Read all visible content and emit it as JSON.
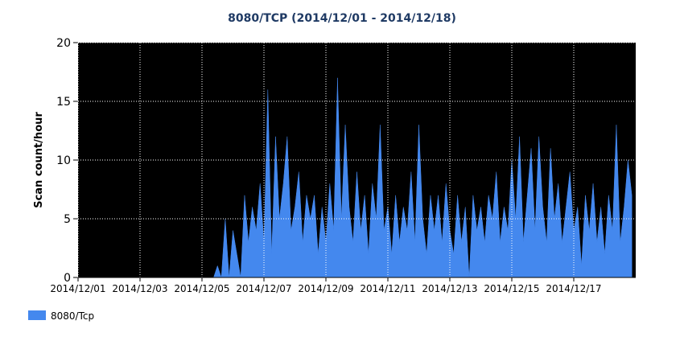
{
  "chart_data": {
    "type": "area",
    "title": "8080/TCP (2014/12/01 - 2014/12/18)",
    "y_label": "Scan count/hour",
    "x": [
      0,
      3,
      6,
      9,
      12,
      15,
      18,
      21,
      24,
      27,
      30,
      33,
      36,
      39,
      42,
      45,
      48,
      51,
      54,
      57,
      60,
      63,
      66,
      69,
      72,
      75,
      78,
      81,
      84,
      87,
      90,
      93,
      96,
      99,
      102,
      105,
      108,
      111,
      114,
      117,
      120,
      123,
      126,
      129,
      132,
      135,
      138,
      141,
      144,
      147,
      150,
      153,
      156,
      159,
      162,
      165,
      168,
      171,
      174,
      177,
      180,
      183,
      186,
      189,
      192,
      195,
      198,
      201,
      204,
      207,
      210,
      213,
      216,
      219,
      222,
      225,
      228,
      231,
      234,
      237,
      240,
      243,
      246,
      249,
      252,
      255,
      258,
      261,
      264,
      267,
      270,
      273,
      276,
      279,
      282,
      285,
      288,
      291,
      294,
      297,
      300,
      303,
      306,
      309,
      312,
      315,
      318,
      321,
      324,
      327,
      330,
      333,
      336,
      339,
      342,
      345,
      348,
      351,
      354,
      357,
      360,
      363,
      366,
      369,
      372,
      375,
      378,
      381,
      384,
      387,
      390,
      393,
      396,
      399,
      402,
      405,
      408,
      411,
      414,
      417,
      420,
      423,
      426,
      429
    ],
    "series": [
      {
        "name": "8080/Tcp",
        "color": "#4488ee",
        "values": [
          0,
          0,
          0,
          0,
          0,
          0,
          0,
          0,
          0,
          0,
          0,
          0,
          0,
          0,
          0,
          0,
          0,
          0,
          0,
          0,
          0,
          0,
          0,
          0,
          0,
          0,
          0,
          0,
          0,
          0,
          0,
          0,
          0,
          0,
          0,
          0,
          1,
          0,
          5,
          0,
          4,
          2,
          0,
          7,
          3,
          6,
          4,
          8,
          3,
          16,
          2,
          12,
          5,
          8,
          12,
          4,
          6,
          9,
          3,
          7,
          5,
          7,
          2,
          6,
          3,
          8,
          4,
          17,
          5,
          13,
          6,
          3,
          9,
          4,
          7,
          2,
          8,
          5,
          13,
          4,
          6,
          2,
          7,
          3,
          6,
          4,
          9,
          3,
          13,
          5,
          2,
          7,
          4,
          7,
          3,
          8,
          4,
          2,
          7,
          3,
          6,
          0,
          7,
          4,
          6,
          3,
          7,
          5,
          9,
          3,
          6,
          4,
          10,
          5,
          12,
          3,
          7,
          11,
          4,
          12,
          6,
          3,
          11,
          5,
          8,
          3,
          6,
          9,
          4,
          6,
          1,
          7,
          4,
          8,
          3,
          6,
          2,
          7,
          4,
          13,
          3,
          6,
          10,
          7
        ]
      }
    ],
    "xlim": [
      0,
      432
    ],
    "xticks": [
      {
        "value": 0,
        "label": "2014/12/01"
      },
      {
        "value": 48,
        "label": "2014/12/03"
      },
      {
        "value": 96,
        "label": "2014/12/05"
      },
      {
        "value": 144,
        "label": "2014/12/07"
      },
      {
        "value": 192,
        "label": "2014/12/09"
      },
      {
        "value": 240,
        "label": "2014/12/11"
      },
      {
        "value": 288,
        "label": "2014/12/13"
      },
      {
        "value": 336,
        "label": "2014/12/15"
      },
      {
        "value": 384,
        "label": "2014/12/17"
      }
    ],
    "ylim": [
      0,
      20
    ],
    "yticks": [
      0,
      5,
      10,
      15,
      20
    ],
    "grid": true
  }
}
